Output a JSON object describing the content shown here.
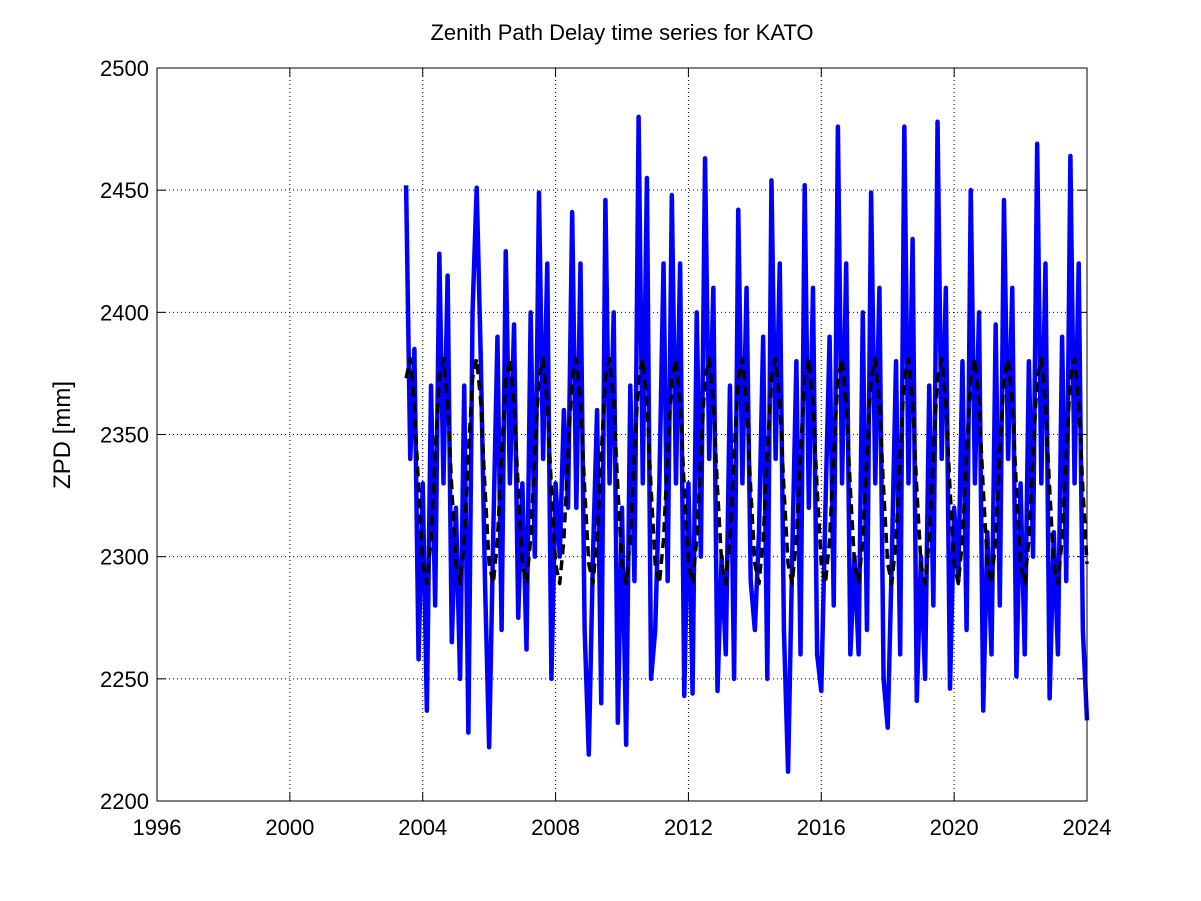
{
  "chart_data": {
    "type": "line",
    "title": "Zenith Path Delay time series for KATO",
    "y_label": "ZPD [mm]",
    "x": [
      2003.5,
      2003.625,
      2003.75,
      2003.875,
      2004,
      2004.125,
      2004.25,
      2004.375,
      2004.5,
      2004.625,
      2004.75,
      2004.875,
      2005,
      2005.125,
      2005.25,
      2005.375,
      2005.5,
      2005.625,
      2005.75,
      2005.875,
      2006,
      2006.125,
      2006.25,
      2006.375,
      2006.5,
      2006.625,
      2006.75,
      2006.875,
      2007,
      2007.125,
      2007.25,
      2007.375,
      2007.5,
      2007.625,
      2007.75,
      2007.875,
      2008,
      2008.125,
      2008.25,
      2008.375,
      2008.5,
      2008.625,
      2008.75,
      2008.875,
      2009,
      2009.125,
      2009.25,
      2009.375,
      2009.5,
      2009.625,
      2009.75,
      2009.875,
      2010,
      2010.125,
      2010.25,
      2010.375,
      2010.5,
      2010.625,
      2010.75,
      2010.875,
      2011,
      2011.125,
      2011.25,
      2011.375,
      2011.5,
      2011.625,
      2011.75,
      2011.875,
      2012,
      2012.125,
      2012.25,
      2012.375,
      2012.5,
      2012.625,
      2012.75,
      2012.875,
      2013,
      2013.125,
      2013.25,
      2013.375,
      2013.5,
      2013.625,
      2013.75,
      2013.875,
      2014,
      2014.125,
      2014.25,
      2014.375,
      2014.5,
      2014.625,
      2014.75,
      2014.875,
      2015,
      2015.125,
      2015.25,
      2015.375,
      2015.5,
      2015.625,
      2015.75,
      2015.875,
      2016,
      2016.125,
      2016.25,
      2016.375,
      2016.5,
      2016.625,
      2016.75,
      2016.875,
      2017,
      2017.125,
      2017.25,
      2017.375,
      2017.5,
      2017.625,
      2017.75,
      2017.875,
      2018,
      2018.125,
      2018.25,
      2018.375,
      2018.5,
      2018.625,
      2018.75,
      2018.875,
      2019,
      2019.125,
      2019.25,
      2019.375,
      2019.5,
      2019.625,
      2019.75,
      2019.875,
      2020,
      2020.125,
      2020.25,
      2020.375,
      2020.5,
      2020.625,
      2020.75,
      2020.875,
      2021,
      2021.125,
      2021.25,
      2021.375,
      2021.5,
      2021.625,
      2021.75,
      2021.875,
      2022,
      2022.125,
      2022.25,
      2022.375,
      2022.5,
      2022.625,
      2022.75,
      2022.875,
      2023,
      2023.125,
      2023.25,
      2023.375,
      2023.5,
      2023.625,
      2023.75,
      2023.875,
      2024
    ],
    "series": [
      {
        "color": "#0000ff",
        "style": "solid",
        "values": [
          2452,
          2340,
          2385,
          2258,
          2330,
          2237,
          2370,
          2280,
          2424,
          2330,
          2415,
          2265,
          2320,
          2250,
          2370,
          2228,
          2400,
          2451,
          2380,
          2290,
          2222,
          2310,
          2390,
          2270,
          2425,
          2330,
          2395,
          2275,
          2330,
          2262,
          2400,
          2300,
          2449,
          2340,
          2420,
          2250,
          2330,
          2300,
          2360,
          2320,
          2441,
          2320,
          2420,
          2270,
          2219,
          2300,
          2360,
          2240,
          2446,
          2330,
          2400,
          2232,
          2320,
          2223,
          2370,
          2290,
          2480,
          2330,
          2455,
          2250,
          2270,
          2330,
          2420,
          2290,
          2448,
          2330,
          2420,
          2243,
          2330,
          2244,
          2400,
          2300,
          2463,
          2340,
          2410,
          2245,
          2300,
          2260,
          2370,
          2250,
          2442,
          2330,
          2410,
          2290,
          2270,
          2310,
          2390,
          2250,
          2454,
          2340,
          2420,
          2270,
          2212,
          2300,
          2380,
          2260,
          2452,
          2320,
          2410,
          2260,
          2245,
          2320,
          2390,
          2280,
          2476,
          2330,
          2420,
          2260,
          2300,
          2260,
          2400,
          2270,
          2449,
          2330,
          2410,
          2250,
          2230,
          2300,
          2380,
          2260,
          2476,
          2330,
          2430,
          2241,
          2300,
          2250,
          2370,
          2280,
          2478,
          2340,
          2410,
          2246,
          2320,
          2290,
          2380,
          2270,
          2450,
          2330,
          2400,
          2237,
          2310,
          2260,
          2395,
          2280,
          2446,
          2340,
          2410,
          2251,
          2330,
          2260,
          2380,
          2300,
          2469,
          2330,
          2420,
          2242,
          2310,
          2260,
          2390,
          2290,
          2464,
          2330,
          2420,
          2270,
          2233
        ]
      },
      {
        "color": "#000000",
        "style": "dashed",
        "values": [
          2373,
          2381,
          2363,
          2328,
          2297,
          2289,
          2307,
          2342,
          2373,
          2381,
          2363,
          2328,
          2297,
          2289,
          2307,
          2342,
          2373,
          2381,
          2363,
          2328,
          2297,
          2289,
          2307,
          2342,
          2373,
          2381,
          2363,
          2328,
          2297,
          2289,
          2307,
          2342,
          2373,
          2381,
          2363,
          2328,
          2297,
          2289,
          2307,
          2342,
          2373,
          2381,
          2363,
          2328,
          2297,
          2289,
          2307,
          2342,
          2373,
          2381,
          2363,
          2328,
          2297,
          2289,
          2307,
          2342,
          2373,
          2381,
          2363,
          2328,
          2297,
          2289,
          2307,
          2342,
          2373,
          2381,
          2363,
          2328,
          2297,
          2289,
          2307,
          2342,
          2373,
          2381,
          2363,
          2328,
          2297,
          2289,
          2307,
          2342,
          2373,
          2381,
          2363,
          2328,
          2297,
          2289,
          2307,
          2342,
          2373,
          2381,
          2363,
          2328,
          2297,
          2289,
          2307,
          2342,
          2373,
          2381,
          2363,
          2328,
          2297,
          2289,
          2307,
          2342,
          2373,
          2381,
          2363,
          2328,
          2297,
          2289,
          2307,
          2342,
          2373,
          2381,
          2363,
          2328,
          2297,
          2289,
          2307,
          2342,
          2373,
          2381,
          2363,
          2328,
          2297,
          2289,
          2307,
          2342,
          2373,
          2381,
          2363,
          2328,
          2297,
          2289,
          2307,
          2342,
          2373,
          2381,
          2363,
          2328,
          2297,
          2289,
          2307,
          2342,
          2373,
          2381,
          2363,
          2328,
          2297,
          2289,
          2307,
          2342,
          2373,
          2381,
          2363,
          2328,
          2297,
          2289,
          2307,
          2342,
          2373,
          2381,
          2363,
          2328,
          2297
        ]
      }
    ],
    "xlim": [
      1996,
      2024
    ],
    "xticks": [
      1996,
      2000,
      2004,
      2008,
      2012,
      2016,
      2020,
      2024
    ],
    "ylim": [
      2200,
      2500
    ],
    "yticks": [
      2200,
      2250,
      2300,
      2350,
      2400,
      2450,
      2500
    ],
    "grid": true
  }
}
